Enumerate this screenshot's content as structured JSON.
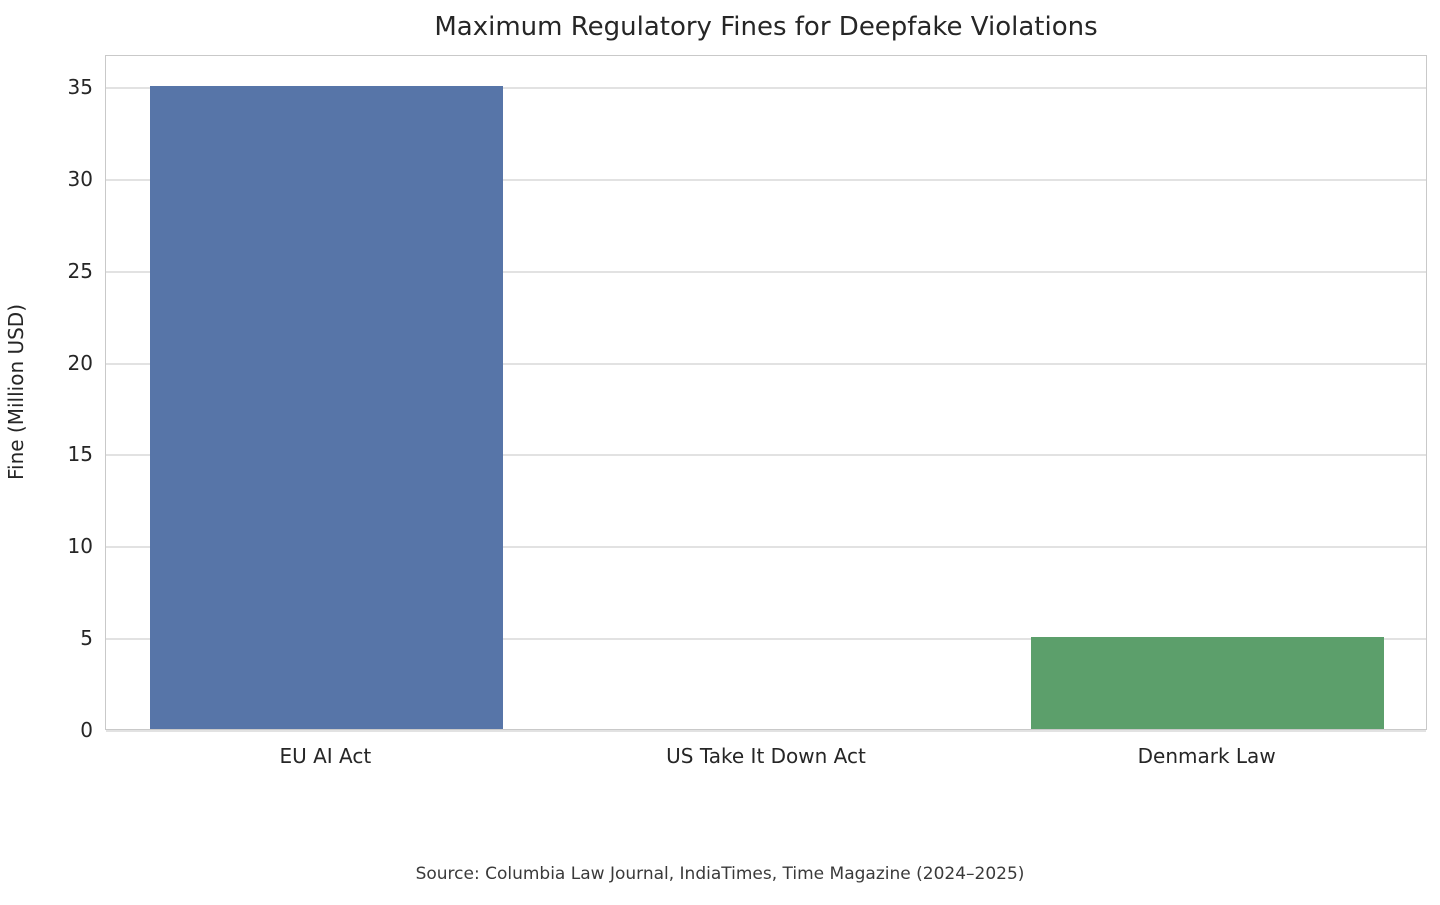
{
  "chart_data": {
    "type": "bar",
    "title": "Maximum Regulatory Fines for Deepfake Violations",
    "categories": [
      "EU AI Act",
      "US Take It Down Act",
      "Denmark Law"
    ],
    "values": [
      35,
      0,
      5
    ],
    "bar_colors": [
      "#5775A8",
      "#DD8452",
      "#5C9F6B"
    ],
    "xlabel": "",
    "ylabel": "Fine (Million USD)",
    "ylim": [
      0,
      36.75
    ],
    "yticks": [
      0,
      5,
      10,
      15,
      20,
      25,
      30,
      35
    ],
    "grid": "horizontal",
    "legend": "none",
    "source_note": "Source: Columbia Law Journal, IndiaTimes, Time Magazine (2024–2025)"
  }
}
